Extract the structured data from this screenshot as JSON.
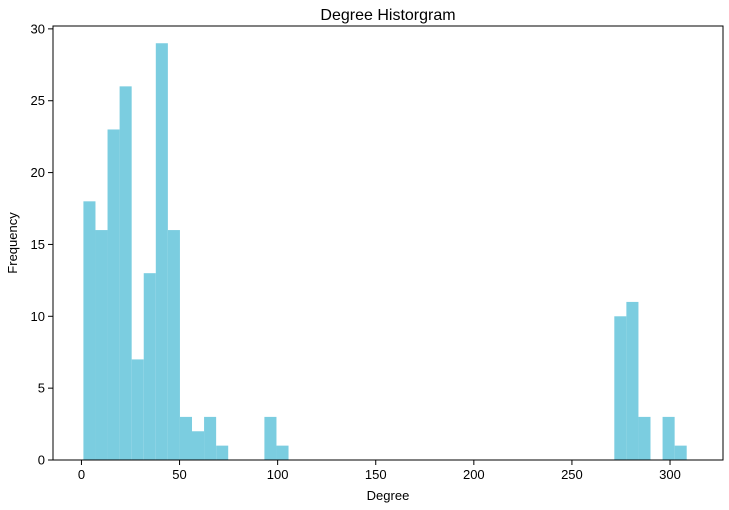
{
  "chart_data": {
    "type": "bar",
    "title": "Degree Historgram",
    "xlabel": "Degree",
    "ylabel": "Frequency",
    "xlim": [
      -14.5,
      327
    ],
    "ylim": [
      0,
      30.2
    ],
    "xticks": [
      0,
      50,
      100,
      150,
      200,
      250,
      300
    ],
    "yticks": [
      0,
      5,
      10,
      15,
      20,
      25,
      30
    ],
    "grid": false,
    "bar_color": "#7bcde0",
    "bin_width": 6.15,
    "bins": [
      {
        "x0": 1.0,
        "x1": 7.15,
        "count": 18
      },
      {
        "x0": 7.15,
        "x1": 13.3,
        "count": 16
      },
      {
        "x0": 13.3,
        "x1": 19.45,
        "count": 23
      },
      {
        "x0": 19.45,
        "x1": 25.6,
        "count": 26
      },
      {
        "x0": 25.6,
        "x1": 31.75,
        "count": 7
      },
      {
        "x0": 31.75,
        "x1": 37.9,
        "count": 13
      },
      {
        "x0": 37.9,
        "x1": 44.05,
        "count": 29
      },
      {
        "x0": 44.05,
        "x1": 50.2,
        "count": 16
      },
      {
        "x0": 50.2,
        "x1": 56.35,
        "count": 3
      },
      {
        "x0": 56.35,
        "x1": 62.5,
        "count": 2
      },
      {
        "x0": 62.5,
        "x1": 68.65,
        "count": 3
      },
      {
        "x0": 68.65,
        "x1": 74.8,
        "count": 1
      },
      {
        "x0": 93.25,
        "x1": 99.4,
        "count": 3
      },
      {
        "x0": 99.4,
        "x1": 105.55,
        "count": 1
      },
      {
        "x0": 271.6,
        "x1": 277.75,
        "count": 10
      },
      {
        "x0": 277.75,
        "x1": 283.9,
        "count": 11
      },
      {
        "x0": 283.9,
        "x1": 290.05,
        "count": 3
      },
      {
        "x0": 296.2,
        "x1": 302.35,
        "count": 3
      },
      {
        "x0": 302.35,
        "x1": 308.5,
        "count": 1
      }
    ]
  }
}
